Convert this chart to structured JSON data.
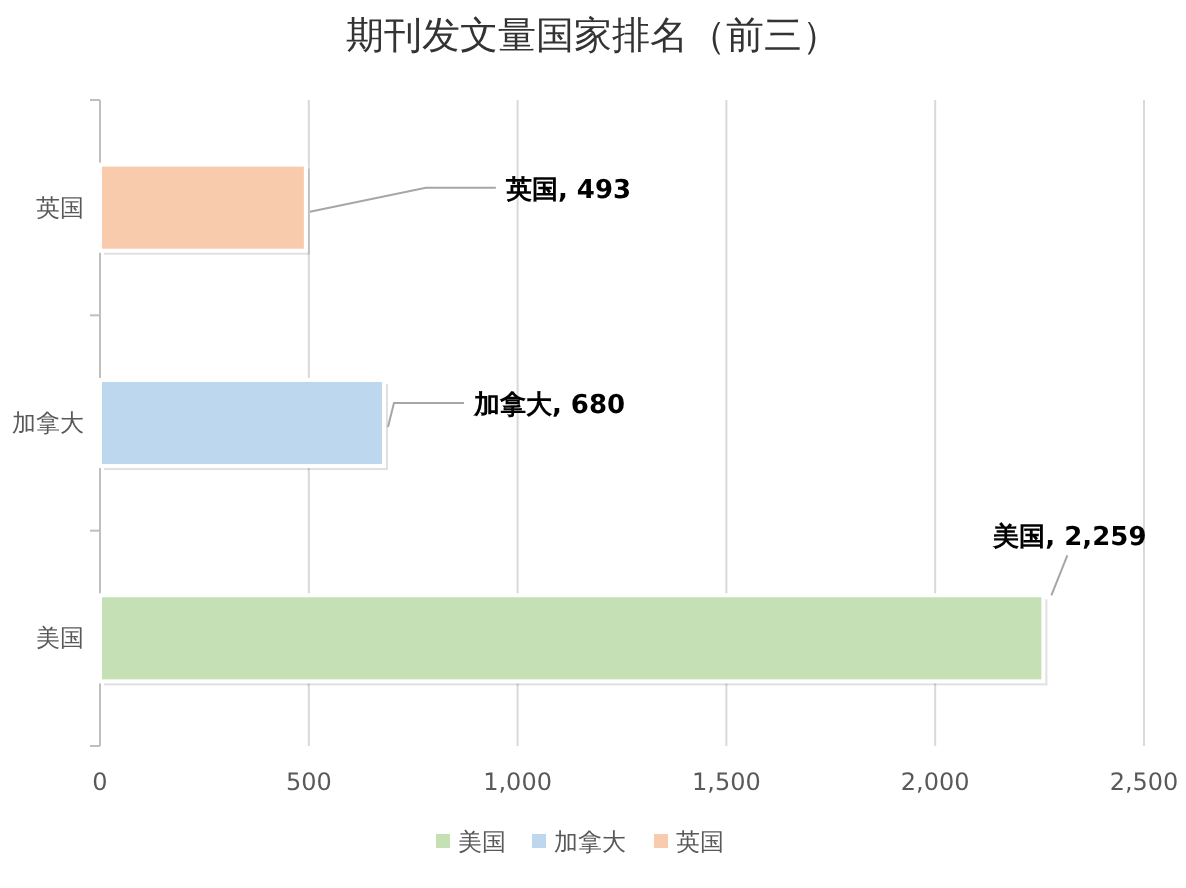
{
  "chart_data": {
    "type": "bar",
    "orientation": "horizontal",
    "stacked": true,
    "title": "期刊发文量国家排名（前三）",
    "categories": [
      "英国",
      "加拿大",
      "美国"
    ],
    "series": [
      {
        "name": "美国",
        "color": "#c5e0b4",
        "values": [
          null,
          null,
          2259
        ],
        "value_labels": [
          null,
          null,
          "美国, 2,259"
        ]
      },
      {
        "name": "加拿大",
        "color": "#bdd7ee",
        "values": [
          null,
          680,
          null
        ],
        "value_labels": [
          null,
          "加拿大, 680",
          null
        ]
      },
      {
        "name": "英国",
        "color": "#f8cbad",
        "values": [
          493,
          null,
          null
        ],
        "value_labels": [
          "英国, 493",
          null,
          null
        ]
      }
    ],
    "xlim": [
      0,
      2500
    ],
    "xticks": [
      0,
      500,
      {
        "value": 1000,
        "label": "1,000"
      },
      {
        "value": 1500,
        "label": "1,500"
      },
      {
        "value": 2000,
        "label": "2,000"
      },
      {
        "value": 2500,
        "label": "2,500"
      }
    ],
    "grid": "x",
    "legend": "bottom"
  }
}
